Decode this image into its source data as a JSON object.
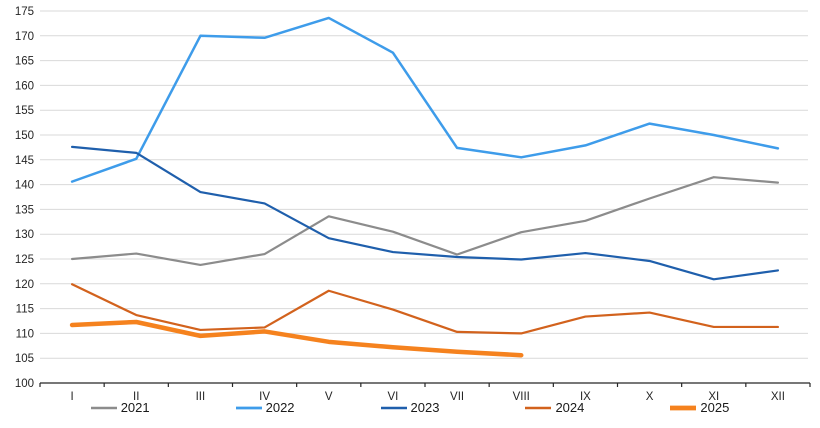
{
  "chart_data": {
    "type": "line",
    "title": "",
    "xlabel": "",
    "ylabel": "",
    "x_categories": [
      "I",
      "II",
      "III",
      "IV",
      "V",
      "VI",
      "VII",
      "VIII",
      "IX",
      "X",
      "XI",
      "XII"
    ],
    "ylim": [
      100,
      175
    ],
    "ytick_step": 5,
    "ytick_labels": [
      "100",
      "105",
      "110",
      "115",
      "120",
      "125",
      "130",
      "135",
      "140",
      "145",
      "150",
      "155",
      "160",
      "165",
      "170",
      "175"
    ],
    "grid": true,
    "legend_position": "bottom",
    "series": [
      {
        "name": "2021",
        "color": "#8c8c8c",
        "width": 2.2,
        "values": [
          125.0,
          126.1,
          123.8,
          126.0,
          133.6,
          130.5,
          125.9,
          130.4,
          132.7,
          137.2,
          141.5,
          140.4
        ]
      },
      {
        "name": "2022",
        "color": "#3e9cea",
        "width": 2.5,
        "values": [
          140.6,
          145.2,
          170.0,
          169.6,
          173.6,
          166.6,
          147.4,
          145.5,
          147.9,
          152.3,
          150.0,
          147.3
        ]
      },
      {
        "name": "2023",
        "color": "#1f5fac",
        "width": 2.2,
        "values": [
          147.6,
          146.4,
          138.5,
          136.2,
          129.2,
          126.4,
          125.4,
          124.9,
          126.2,
          124.6,
          120.9,
          122.7
        ]
      },
      {
        "name": "2024",
        "color": "#d2621d",
        "width": 2.2,
        "values": [
          119.9,
          113.7,
          110.7,
          111.2,
          118.6,
          114.8,
          110.3,
          110.0,
          113.4,
          114.2,
          111.3,
          111.3
        ]
      },
      {
        "name": "2025",
        "color": "#f5821e",
        "width": 4.5,
        "values": [
          111.7,
          112.3,
          109.5,
          110.4,
          108.3,
          107.2,
          106.3,
          105.6
        ]
      }
    ],
    "style": {
      "grid_color": "#d9d9d9",
      "axis_color": "#262626",
      "tick_label_color": "#262626",
      "background": "#ffffff"
    }
  }
}
